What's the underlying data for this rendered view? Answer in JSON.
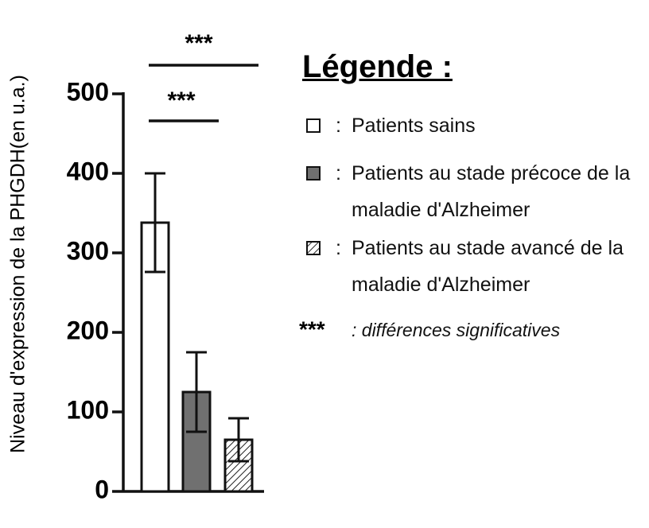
{
  "chart_data": {
    "type": "bar",
    "y_label": "Niveau d'expression de la PHGDH(en u.a.)",
    "categories": [
      null,
      null,
      null
    ],
    "series": [
      {
        "name": "Patients sains",
        "color": "#ffffff",
        "pattern": "none",
        "values": [
          338,
          null,
          null
        ],
        "errors": [
          62,
          null,
          null
        ]
      },
      {
        "name": "Patients au stade précoce de la maladie d'Alzheimer",
        "color": "#707070",
        "pattern": "none",
        "values": [
          null,
          125,
          null
        ],
        "errors": [
          null,
          50,
          null
        ]
      },
      {
        "name": "Patients au stade avancé de la maladie d'Alzheimer",
        "color": "#ffffff",
        "pattern": "hatch",
        "values": [
          null,
          null,
          65
        ],
        "errors": [
          null,
          null,
          27
        ]
      }
    ],
    "ylim": [
      0,
      500
    ],
    "yticks": [
      0,
      100,
      200,
      300,
      400,
      500
    ],
    "annotations": [
      "***",
      "***"
    ],
    "legend_title": "Légende :",
    "legend_separator": ":",
    "legend_note": {
      "symbol": "***",
      "text": ": différences significatives"
    }
  }
}
